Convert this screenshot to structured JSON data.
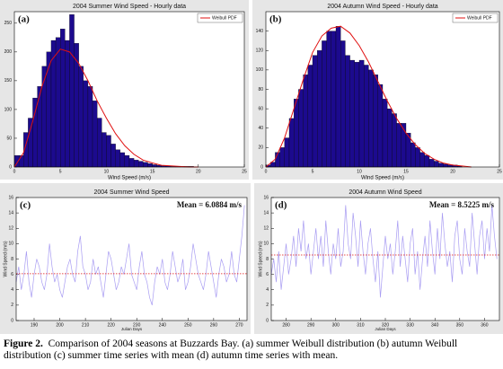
{
  "chart_data": [
    {
      "type": "histogram",
      "title": "2004 Summer Wind Speed - Hourly data",
      "panel": "(a)",
      "xlabel": "Wind Speed (m/s)",
      "bins": [
        0,
        0.5,
        1,
        1.5,
        2,
        2.5,
        3,
        3.5,
        4,
        4.5,
        5,
        5.5,
        6,
        6.5,
        7,
        7.5,
        8,
        8.5,
        9,
        9.5,
        10,
        10.5,
        11,
        11.5,
        12,
        12.5,
        13,
        13.5,
        14,
        14.5,
        15,
        15.5,
        16,
        16.5,
        17,
        17.5,
        18,
        18.5,
        19,
        19.5,
        20
      ],
      "values": [
        20,
        20,
        60,
        85,
        120,
        140,
        175,
        200,
        220,
        225,
        240,
        220,
        265,
        215,
        175,
        150,
        140,
        115,
        85,
        60,
        55,
        40,
        30,
        25,
        20,
        15,
        12,
        10,
        8,
        6,
        4,
        3,
        2,
        2,
        1,
        1,
        1,
        1,
        1,
        0
      ],
      "color": "#1c0a8e",
      "curve": {
        "name": "Weibull PDF",
        "color": "#e01010",
        "x": [
          0,
          1,
          2,
          3,
          4,
          5,
          6,
          7,
          8,
          9,
          10,
          11,
          12,
          13,
          14,
          15,
          16,
          17,
          18,
          19,
          20
        ],
        "values": [
          0,
          25,
          80,
          140,
          185,
          205,
          200,
          180,
          150,
          115,
          85,
          58,
          37,
          22,
          12,
          7,
          3,
          2,
          1,
          0,
          0
        ]
      },
      "xlim": [
        0,
        25
      ],
      "xticks": [
        0,
        5,
        10,
        15,
        20,
        25
      ],
      "ylim": [
        0,
        270
      ],
      "yticks": [
        0,
        50,
        100,
        150,
        200,
        250
      ]
    },
    {
      "type": "histogram",
      "title": "2004 Autumn Wind Speed - Hourly data",
      "panel": "(b)",
      "xlabel": "Wind Speed (m/s)",
      "bins": [
        0,
        0.5,
        1,
        1.5,
        2,
        2.5,
        3,
        3.5,
        4,
        4.5,
        5,
        5.5,
        6,
        6.5,
        7,
        7.5,
        8,
        8.5,
        9,
        9.5,
        10,
        10.5,
        11,
        11.5,
        12,
        12.5,
        13,
        13.5,
        14,
        14.5,
        15,
        15.5,
        16,
        16.5,
        17,
        17.5,
        18,
        18.5,
        19,
        19.5,
        20,
        20.5,
        21
      ],
      "values": [
        2,
        5,
        15,
        20,
        30,
        50,
        70,
        80,
        95,
        105,
        115,
        120,
        130,
        140,
        140,
        145,
        130,
        115,
        110,
        108,
        110,
        105,
        100,
        95,
        85,
        70,
        60,
        55,
        45,
        45,
        35,
        25,
        20,
        15,
        12,
        8,
        6,
        4,
        3,
        2,
        2,
        1
      ],
      "color": "#1c0a8e",
      "curve": {
        "name": "Weibull PDF",
        "color": "#e01010",
        "x": [
          0,
          1,
          2,
          3,
          4,
          5,
          6,
          7,
          8,
          9,
          10,
          11,
          12,
          13,
          14,
          15,
          16,
          17,
          18,
          19,
          20,
          21,
          22
        ],
        "values": [
          0,
          8,
          30,
          60,
          90,
          118,
          135,
          143,
          145,
          138,
          125,
          108,
          88,
          68,
          50,
          35,
          23,
          14,
          8,
          4,
          2,
          1,
          0
        ]
      },
      "xlim": [
        0,
        25
      ],
      "xticks": [
        0,
        5,
        10,
        15,
        20,
        25
      ],
      "ylim": [
        0,
        160
      ],
      "yticks": [
        0,
        20,
        40,
        60,
        80,
        100,
        120,
        140
      ]
    },
    {
      "type": "line",
      "title": "2004 Summer Wind Speed",
      "panel": "(c)",
      "xlabel": "Julian Days",
      "ylabel": "Wind Speed (m/s)",
      "x": [
        183,
        184,
        185,
        186,
        187,
        188,
        189,
        190,
        191,
        192,
        193,
        194,
        195,
        196,
        197,
        198,
        199,
        200,
        201,
        202,
        203,
        204,
        205,
        206,
        207,
        208,
        209,
        210,
        211,
        212,
        213,
        214,
        215,
        216,
        217,
        218,
        219,
        220,
        221,
        222,
        223,
        224,
        225,
        226,
        227,
        228,
        229,
        230,
        231,
        232,
        233,
        234,
        235,
        236,
        237,
        238,
        239,
        240,
        241,
        242,
        243,
        244,
        245,
        246,
        247,
        248,
        249,
        250,
        251,
        252,
        253,
        254,
        255,
        256,
        257,
        258,
        259,
        260,
        261,
        262,
        263,
        264,
        265,
        266,
        267,
        268,
        269,
        270,
        271,
        272
      ],
      "values": [
        5,
        7,
        4,
        6,
        9,
        5,
        3,
        6,
        8,
        7,
        5,
        4,
        6,
        10,
        7,
        5,
        6,
        4,
        3,
        5,
        7,
        8,
        6,
        5,
        9,
        11,
        7,
        6,
        4,
        5,
        8,
        6,
        7,
        5,
        3,
        6,
        9,
        8,
        6,
        4,
        5,
        7,
        6,
        8,
        10,
        6,
        5,
        4,
        7,
        9,
        6,
        5,
        3,
        2,
        5,
        7,
        6,
        8,
        5,
        4,
        6,
        9,
        7,
        5,
        6,
        8,
        4,
        5,
        7,
        10,
        8,
        6,
        5,
        4,
        6,
        9,
        7,
        5,
        3,
        6,
        8,
        7,
        5,
        6,
        9,
        6,
        5,
        8,
        11,
        15
      ],
      "color": "#a89cf2",
      "mean": 6.0884,
      "mean_label": "Mean = 6.0884 m/s",
      "mean_color": "#e01010",
      "xlim": [
        183,
        273
      ],
      "xticks": [
        190,
        200,
        210,
        220,
        230,
        240,
        250,
        260,
        270
      ],
      "ylim": [
        0,
        16
      ],
      "yticks": [
        0,
        2,
        4,
        6,
        8,
        10,
        12,
        14,
        16
      ]
    },
    {
      "type": "line",
      "title": "2004 Autumn Wind Speed",
      "panel": "(d)",
      "xlabel": "Julian Days",
      "ylabel": "Wind Speed (m/s)",
      "x": [
        274,
        275,
        276,
        277,
        278,
        279,
        280,
        281,
        282,
        283,
        284,
        285,
        286,
        287,
        288,
        289,
        290,
        291,
        292,
        293,
        294,
        295,
        296,
        297,
        298,
        299,
        300,
        301,
        302,
        303,
        304,
        305,
        306,
        307,
        308,
        309,
        310,
        311,
        312,
        313,
        314,
        315,
        316,
        317,
        318,
        319,
        320,
        321,
        322,
        323,
        324,
        325,
        326,
        327,
        328,
        329,
        330,
        331,
        332,
        333,
        334,
        335,
        336,
        337,
        338,
        339,
        340,
        341,
        342,
        343,
        344,
        345,
        346,
        347,
        348,
        349,
        350,
        351,
        352,
        353,
        354,
        355,
        356,
        357,
        358,
        359,
        360,
        361,
        362,
        363,
        364,
        365
      ],
      "values": [
        6,
        8,
        5,
        9,
        4,
        7,
        10,
        6,
        8,
        11,
        7,
        12,
        9,
        13,
        8,
        10,
        6,
        9,
        12,
        8,
        11,
        7,
        13,
        9,
        6,
        10,
        8,
        12,
        7,
        9,
        15,
        10,
        8,
        14,
        11,
        7,
        13,
        9,
        6,
        10,
        12,
        8,
        5,
        9,
        3,
        7,
        11,
        8,
        10,
        6,
        9,
        13,
        7,
        11,
        8,
        5,
        10,
        12,
        6,
        9,
        4,
        8,
        11,
        7,
        13,
        9,
        6,
        12,
        8,
        14,
        10,
        7,
        9,
        5,
        11,
        13,
        8,
        6,
        12,
        9,
        7,
        14,
        10,
        6,
        11,
        13,
        8,
        12,
        9,
        15,
        11,
        8
      ],
      "color": "#a89cf2",
      "mean": 8.5225,
      "mean_label": "Mean = 8.5225 m/s",
      "mean_color": "#e01010",
      "xlim": [
        274,
        366
      ],
      "xticks": [
        280,
        290,
        300,
        310,
        320,
        330,
        340,
        350,
        360
      ],
      "ylim": [
        0,
        16
      ],
      "yticks": [
        0,
        2,
        4,
        6,
        8,
        10,
        12,
        14,
        16
      ]
    }
  ],
  "caption": {
    "label": "Figure 2.",
    "text": "Comparison of 2004 seasons at Buzzards Bay. (a) summer Weibull distribution (b) autumn Weibull distribution (c) summer time series with mean (d) autumn time series with mean."
  }
}
